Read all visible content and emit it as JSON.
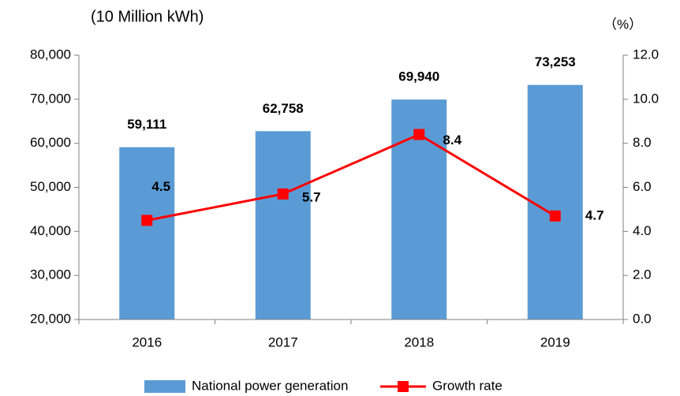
{
  "chart_data": {
    "type": "bar_line",
    "y_label": "(10 Million kWh)",
    "y2_label": "（%）",
    "categories": [
      "2016",
      "2017",
      "2018",
      "2019"
    ],
    "series": [
      {
        "name": "National power generation",
        "type": "bar",
        "color": "#5b9bd5",
        "values": [
          59111,
          62758,
          69940,
          73253
        ],
        "value_labels": [
          "59,111",
          "62,758",
          "69,940",
          "73,253"
        ]
      },
      {
        "name": "Growth rate",
        "type": "line",
        "axis": "y2",
        "color": "#ff0000",
        "values": [
          4.5,
          5.7,
          8.4,
          4.7
        ]
      }
    ],
    "ylim": [
      20000,
      80000
    ],
    "yticks": [
      {
        "value": 20000,
        "label": "20,000"
      },
      {
        "value": 30000,
        "label": "30,000"
      },
      {
        "value": 40000,
        "label": "40,000"
      },
      {
        "value": 50000,
        "label": "50,000"
      },
      {
        "value": 60000,
        "label": "60,000"
      },
      {
        "value": 70000,
        "label": "70,000"
      },
      {
        "value": 80000,
        "label": "80,000"
      }
    ],
    "y2lim": [
      0,
      12
    ],
    "y2ticks": [
      {
        "value": 0,
        "label": "0.0"
      },
      {
        "value": 2,
        "label": "2.0"
      },
      {
        "value": 4,
        "label": "4.0"
      },
      {
        "value": 6,
        "label": "6.0"
      },
      {
        "value": 8,
        "label": "8.0"
      },
      {
        "value": 10,
        "label": "10.0"
      },
      {
        "value": 12,
        "label": "12.0"
      }
    ],
    "legend": "bottom"
  }
}
